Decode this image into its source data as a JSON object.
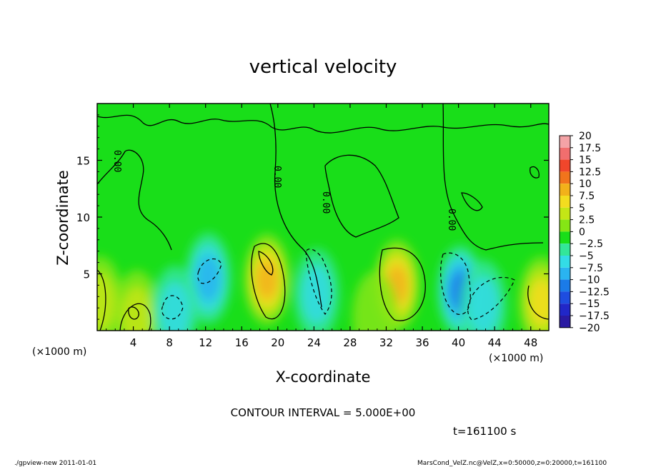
{
  "chart_data": {
    "type": "heatmap",
    "title": "vertical velocity",
    "xlabel": "X-coordinate",
    "ylabel": "Z-coordinate",
    "x_unit_left": "(×1000 m)",
    "x_unit_right": "(×1000 m)",
    "xlim": [
      0,
      50
    ],
    "ylim": [
      0,
      20
    ],
    "x_ticks": [
      4,
      8,
      12,
      16,
      20,
      24,
      28,
      32,
      36,
      40,
      44,
      48
    ],
    "y_ticks": [
      5,
      10,
      15
    ],
    "colorbar_levels": [
      "20",
      "17.5",
      "15",
      "12.5",
      "10",
      "7.5",
      "5",
      "2.5",
      "0",
      "−2.5",
      "−5",
      "−7.5",
      "−10",
      "−12.5",
      "−15",
      "−17.5",
      "−20"
    ],
    "colorbar_colors": [
      "#f4a3a6",
      "#f16e6e",
      "#f1462b",
      "#f1741c",
      "#f2b11a",
      "#f3dd1f",
      "#c4e616",
      "#85e615",
      "#19de19",
      "#33e699",
      "#33dce6",
      "#2ab4f0",
      "#1b7be8",
      "#1e4de0",
      "#2127c8",
      "#2a1aa2",
      "#571aa8"
    ],
    "contour_labels": [
      "0.00",
      "0.00",
      "0.00",
      "0.00"
    ],
    "contour_interval": "CONTOUR INTERVAL = 5.000E+00",
    "time_label": "t=161100 s",
    "background_value": 0,
    "features": [
      {
        "x": 18.8,
        "z": 4.5,
        "value": 10
      },
      {
        "x": 33.2,
        "z": 4.0,
        "value": 9
      },
      {
        "x": 49.2,
        "z": 2.5,
        "value": 7
      },
      {
        "x": 0.3,
        "z": 2.5,
        "value": 6
      },
      {
        "x": 4.4,
        "z": 1.3,
        "value": 4
      },
      {
        "x": 30.8,
        "z": 1.2,
        "value": 3
      },
      {
        "x": 40.2,
        "z": 3.5,
        "value": -9
      },
      {
        "x": 12.3,
        "z": 4.6,
        "value": -7
      },
      {
        "x": 8.6,
        "z": 1.7,
        "value": -6
      },
      {
        "x": 24.3,
        "z": 3.2,
        "value": -4
      },
      {
        "x": 42.8,
        "z": 2.2,
        "value": -6
      }
    ]
  },
  "footer": {
    "left": "./gpview-new  2011-01-01",
    "right": "MarsCond_VelZ.nc@VelZ,x=0:50000,z=0:20000,t=161100"
  }
}
